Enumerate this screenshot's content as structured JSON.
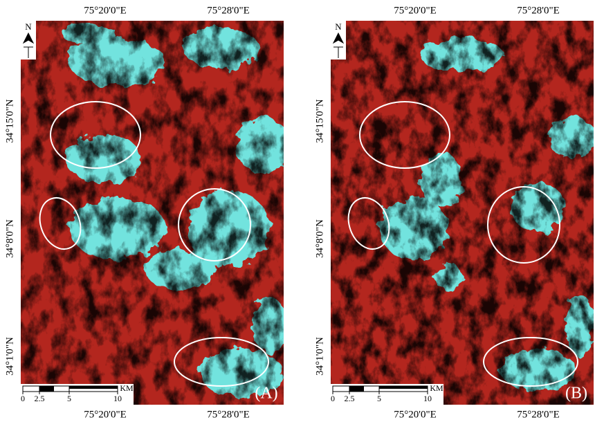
{
  "panels": [
    {
      "panel_label": "(A)",
      "north": "N",
      "top_labels": [
        "75°20'0\"E",
        "75°28'0\"E"
      ],
      "bottom_labels": [
        "75°20'0\"E",
        "75°28'0\"E"
      ],
      "left_labels": [
        "34°15'0\"N",
        "34°8'0\"N",
        "34°1'0\"N"
      ],
      "scale_labels": [
        "0",
        "2.5",
        "5",
        "10"
      ],
      "scale_unit": "KM"
    },
    {
      "panel_label": "(B)",
      "north": "N",
      "top_labels": [
        "75°20'0\"E",
        "75°28'0\"E"
      ],
      "bottom_labels": [
        "75°20'0\"E",
        "75°28'0\"E"
      ],
      "left_labels": [
        "34°15'0\"N",
        "34°8'0\"N",
        "34°1'0\"N"
      ],
      "scale_labels": [
        "0",
        "2.5",
        "5",
        "10"
      ],
      "scale_unit": "KM"
    }
  ]
}
